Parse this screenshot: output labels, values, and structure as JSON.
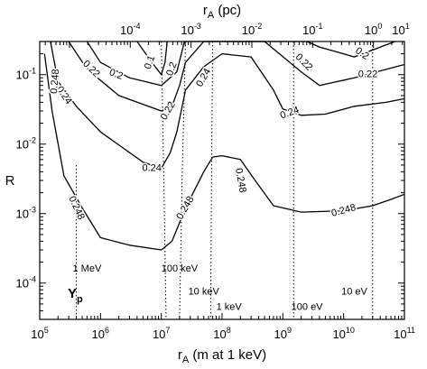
{
  "chart_data": {
    "type": "line",
    "title": "",
    "xlabel_main": "r",
    "xlabel_sub": "A",
    "xlabel_rest": " (m at 1 keV)",
    "x2label_main": "r",
    "x2label_sub": "A",
    "x2label_rest": " (pc)",
    "ylabel": "R",
    "xscale": "log",
    "yscale": "log",
    "xlim": [
      100000,
      100000000000
    ],
    "ylim": [
      3e-05,
      0.3
    ],
    "x2lim": [
      3.24e-06,
      3.24
    ],
    "grid": false,
    "x_ticks": [
      {
        "value": 100000,
        "mant": "10",
        "exp": "5"
      },
      {
        "value": 1000000,
        "mant": "10",
        "exp": "6"
      },
      {
        "value": 10000000,
        "mant": "10",
        "exp": "7"
      },
      {
        "value": 100000000,
        "mant": "10",
        "exp": "8"
      },
      {
        "value": 1000000000,
        "mant": "10",
        "exp": "9"
      },
      {
        "value": 10000000000,
        "mant": "10",
        "exp": "10"
      },
      {
        "value": 100000000000,
        "mant": "10",
        "exp": "11"
      }
    ],
    "x2_ticks": [
      {
        "value": 0.0001,
        "mant": "10",
        "exp": "-4"
      },
      {
        "value": 0.001,
        "mant": "10",
        "exp": "-3"
      },
      {
        "value": 0.01,
        "mant": "10",
        "exp": "-2"
      },
      {
        "value": 0.1,
        "mant": "10",
        "exp": "-1"
      },
      {
        "value": 1,
        "mant": "10",
        "exp": "0"
      },
      {
        "value": 10,
        "mant": "10",
        "exp": "1"
      }
    ],
    "y_ticks": [
      {
        "value": 0.0001,
        "mant": "10",
        "exp": "-4"
      },
      {
        "value": 0.001,
        "mant": "10",
        "exp": "-3"
      },
      {
        "value": 0.01,
        "mant": "10",
        "exp": "-2"
      },
      {
        "value": 0.1,
        "mant": "10",
        "exp": "-1"
      }
    ],
    "series": [
      {
        "name": "0.1",
        "x": [
          4000000,
          7000000,
          10000000,
          11500000,
          12500000
        ],
        "y": [
          0.3,
          0.15,
          0.1,
          0.15,
          0.3
        ]
      },
      {
        "name": "0.2",
        "x": [
          600000,
          1000000,
          3000000,
          10000000,
          18000000,
          24000000,
          2500000000,
          4000000000,
          15000000000,
          70000000000
        ],
        "y": [
          0.3,
          0.15,
          0.09,
          0.07,
          0.11,
          0.3,
          0.3,
          0.25,
          0.18,
          0.3
        ]
      },
      {
        "name": "0.22",
        "x": [
          300000,
          600000,
          2000000,
          10000000,
          15000000,
          20000000,
          25000000,
          50000000,
          100000000,
          500000000,
          2000000000,
          4000000000,
          15000000000,
          100000000000
        ],
        "y": [
          0.3,
          0.12,
          0.05,
          0.03,
          0.035,
          0.07,
          0.15,
          0.3,
          0.3,
          0.3,
          0.11,
          0.07,
          0.09,
          0.14
        ]
      },
      {
        "name": "0.24",
        "x": [
          150000,
          200000,
          400000,
          1000000,
          5000000,
          10000000,
          14000000,
          18000000,
          25000000,
          50000000,
          100000000,
          300000000,
          700000000,
          1000000000,
          2000000000,
          5000000000,
          15000000000,
          50000000000,
          100000000000
        ],
        "y": [
          0.3,
          0.08,
          0.035,
          0.015,
          0.0055,
          0.0045,
          0.0075,
          0.015,
          0.06,
          0.13,
          0.2,
          0.18,
          0.06,
          0.032,
          0.026,
          0.027,
          0.035,
          0.04,
          0.045
        ]
      },
      {
        "name": "0.248",
        "x": [
          120000,
          160000,
          250000,
          500000,
          1000000,
          3000000,
          10000000,
          15000000,
          25000000,
          50000000,
          70000000,
          100000000,
          200000000,
          350000000,
          700000000,
          2000000000,
          10000000000,
          30000000000,
          60000000000,
          100000000000
        ],
        "y": [
          0.2,
          0.03,
          0.0035,
          0.0012,
          0.00045,
          0.00035,
          0.0003,
          0.0004,
          0.0012,
          0.004,
          0.0065,
          0.0068,
          0.006,
          0.003,
          0.0013,
          0.00105,
          0.0011,
          0.0013,
          0.0016,
          0.0019
        ]
      }
    ],
    "contour_labels": [
      {
        "text": "0.1",
        "x": 6500000,
        "y": 0.15,
        "rot": -70
      },
      {
        "text": "0.2",
        "x": 15000000,
        "y": 0.12,
        "rot": -70
      },
      {
        "text": "0.2",
        "x": 1800000,
        "y": 0.1,
        "rot": 20
      },
      {
        "text": "0.2",
        "x": 20000000000,
        "y": 0.2,
        "rot": 35
      },
      {
        "text": "0.22",
        "x": 700000,
        "y": 0.12,
        "rot": 45
      },
      {
        "text": "0.22",
        "x": 13000000,
        "y": 0.03,
        "rot": -60
      },
      {
        "text": "0.22",
        "x": 2200000000,
        "y": 0.15,
        "rot": 45
      },
      {
        "text": "0.22",
        "x": 25000000000,
        "y": 0.1,
        "rot": 0
      },
      {
        "text": "0.24",
        "x": 250000,
        "y": 0.05,
        "rot": 55
      },
      {
        "text": "0.24",
        "x": 7000000,
        "y": 0.0045,
        "rot": 0
      },
      {
        "text": "0.24",
        "x": 50000000,
        "y": 0.09,
        "rot": -60
      },
      {
        "text": "0.24",
        "x": 1300000000,
        "y": 0.028,
        "rot": -20
      },
      {
        "text": "0.248",
        "x": 180000,
        "y": 0.08,
        "rot": -85
      },
      {
        "text": "0.248",
        "x": 400000,
        "y": 0.0012,
        "rot": 65
      },
      {
        "text": "0.248",
        "x": 25000000,
        "y": 0.0012,
        "rot": -60
      },
      {
        "text": "0.248",
        "x": 200000000,
        "y": 0.003,
        "rot": 80
      },
      {
        "text": "0.248",
        "x": 10000000000,
        "y": 0.0011,
        "rot": -15
      }
    ],
    "energy_markers": [
      {
        "label": "1 MeV",
        "line_x": [
          400000,
          400000
        ],
        "text_x": 600000,
        "text_y": 0.00016
      },
      {
        "label": "100 keV",
        "line_x": [
          10000000,
          12000000
        ],
        "text_x": 20000000,
        "text_y": 0.00016
      },
      {
        "label": "10 keV",
        "line_x": [
          20000000,
          25000000
        ],
        "text_x": 50000000,
        "text_y": 7.5e-05
      },
      {
        "label": "1 keV",
        "line_x": [
          65000000,
          70000000
        ],
        "text_x": 130000000,
        "text_y": 4.5e-05
      },
      {
        "label": "100 eV",
        "line_x": [
          1500000000,
          1500000000
        ],
        "text_x": 2500000000,
        "text_y": 4.5e-05
      },
      {
        "label": "10 eV",
        "line_x": [
          30000000000,
          30000000000
        ],
        "text_x": 15000000000,
        "text_y": 7.5e-05
      }
    ],
    "dotted_contours": [
      {
        "x": [
          10000000,
          11000000,
          12000000
        ],
        "y": [
          0.3,
          0.003,
          3e-05
        ]
      },
      {
        "x": [
          25000000,
          22000000,
          20000000
        ],
        "y": [
          0.3,
          0.003,
          3e-05
        ]
      },
      {
        "x": [
          70000000,
          67000000,
          65000000
        ],
        "y": [
          0.3,
          0.003,
          3e-05
        ]
      },
      {
        "x": [
          1500000000,
          1500000000
        ],
        "y": [
          0.3,
          3e-05
        ]
      },
      {
        "x": [
          30000000000,
          30000000000
        ],
        "y": [
          0.3,
          3e-05
        ]
      },
      {
        "x": [
          400000,
          400000
        ],
        "y": [
          0.005,
          3e-05
        ]
      }
    ],
    "panel_label_main": "Y",
    "panel_label_sub": "p"
  }
}
